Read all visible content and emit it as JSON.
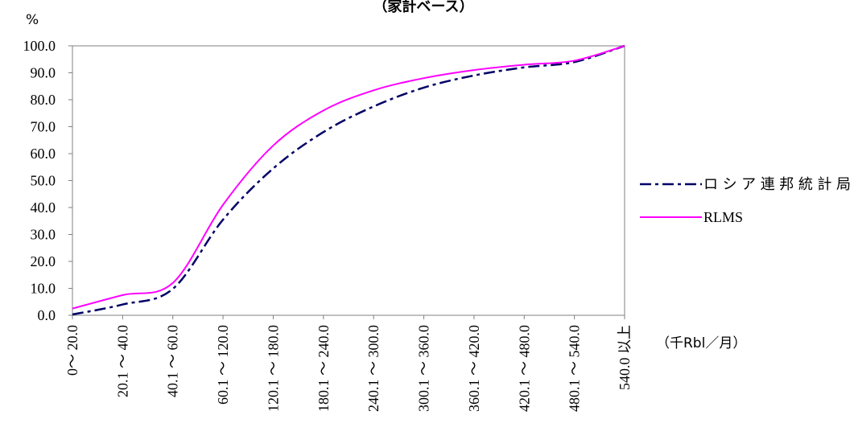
{
  "chart_data": {
    "type": "line",
    "title": "（家計ベース）",
    "ylabel": "%",
    "xunit": "（千Rbl／月）",
    "ylim": [
      0,
      100
    ],
    "yticks": [
      "0.0",
      "10.0",
      "20.0",
      "30.0",
      "40.0",
      "50.0",
      "60.0",
      "70.0",
      "80.0",
      "90.0",
      "100.0"
    ],
    "categories": [
      "0～ 20.0",
      "20.1 ～ 40.0",
      "40.1 ～ 60.0",
      "60.1 ～ 120.0",
      "120.1 ～ 180.0",
      "180.1 ～ 240.0",
      "240.1 ～ 300.0",
      "300.1 ～ 360.0",
      "360.1 ～ 420.0",
      "420.1 ～ 480.0",
      "480.1 ～ 540.0",
      "540.0 以上"
    ],
    "grid": false,
    "legend_position": "right",
    "series": [
      {
        "name": "ロシア連邦統計局",
        "color": "#000066",
        "dash": "dash-dot",
        "values": [
          0.3,
          4.0,
          9.8,
          35.5,
          54.5,
          68.0,
          77.5,
          84.5,
          89.0,
          92.0,
          94.0,
          100.0
        ]
      },
      {
        "name": "RLMS",
        "color": "#ff00ff",
        "dash": "solid",
        "values": [
          2.5,
          7.5,
          12.0,
          41.0,
          63.0,
          76.0,
          83.5,
          88.0,
          91.0,
          93.0,
          94.5,
          100.0
        ]
      }
    ]
  }
}
